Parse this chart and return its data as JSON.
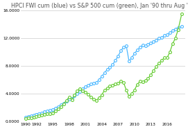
{
  "title": "HPCI FWI cum (blue) vs S&P 500 cum (green), Jan '90 thru Aug '18",
  "title_fontsize": 5.8,
  "background_color": "#ffffff",
  "grid_color": "#cccccc",
  "ylim": [
    0,
    16000
  ],
  "yticks": [
    0,
    4000,
    8000,
    12000,
    16000
  ],
  "ytick_labels": [
    "0.0000",
    "4.0000",
    "8.0000",
    "12.0000",
    "16.0000"
  ],
  "xticks": [
    1990,
    1992,
    1995,
    1998,
    2001,
    2004,
    2007,
    2010,
    2013,
    2016
  ],
  "xtick_labels": [
    "1990",
    "1992",
    "1995",
    "1998",
    "2001",
    "2004",
    "2007",
    "2010",
    "2013",
    "2016"
  ],
  "blue_color": "#4db8ff",
  "green_color": "#66cc33",
  "blue_x": [
    1990.0,
    1990.5,
    1991.0,
    1991.5,
    1992.0,
    1992.5,
    1993.0,
    1993.5,
    1994.0,
    1994.5,
    1995.0,
    1995.5,
    1996.0,
    1996.5,
    1997.0,
    1997.5,
    1998.0,
    1998.5,
    1999.0,
    1999.5,
    2000.0,
    2000.5,
    2001.0,
    2001.5,
    2002.0,
    2002.5,
    2003.0,
    2003.5,
    2004.0,
    2004.5,
    2005.0,
    2005.5,
    2006.0,
    2006.5,
    2007.0,
    2007.5,
    2008.0,
    2008.5,
    2009.0,
    2009.5,
    2010.0,
    2010.5,
    2011.0,
    2011.5,
    2012.0,
    2012.5,
    2013.0,
    2013.5,
    2014.0,
    2014.5,
    2015.0,
    2015.5,
    2016.0,
    2016.5,
    2017.0,
    2017.5,
    2018.0,
    2018.67
  ],
  "blue_y": [
    600,
    700,
    800,
    900,
    1000,
    1100,
    1200,
    1350,
    1450,
    1550,
    1700,
    1900,
    2100,
    2350,
    2600,
    2900,
    3200,
    3300,
    3700,
    4000,
    4300,
    4700,
    5000,
    5200,
    5400,
    5500,
    5600,
    6000,
    6500,
    7000,
    7500,
    7800,
    8200,
    8800,
    9400,
    10200,
    10700,
    10900,
    8700,
    9200,
    9800,
    10300,
    10700,
    11000,
    10900,
    11100,
    11300,
    11500,
    11700,
    12000,
    12100,
    12400,
    12500,
    12800,
    13100,
    13300,
    13500,
    13700
  ],
  "green_x": [
    1990.0,
    1990.5,
    1991.0,
    1991.5,
    1992.0,
    1992.5,
    1993.0,
    1993.5,
    1994.0,
    1994.5,
    1995.0,
    1995.5,
    1996.0,
    1996.5,
    1997.0,
    1997.5,
    1998.0,
    1998.5,
    1999.0,
    1999.5,
    2000.0,
    2000.5,
    2001.0,
    2001.5,
    2002.0,
    2002.5,
    2003.0,
    2003.5,
    2004.0,
    2004.5,
    2005.0,
    2005.5,
    2006.0,
    2006.5,
    2007.0,
    2007.5,
    2008.0,
    2008.5,
    2009.0,
    2009.5,
    2010.0,
    2010.5,
    2011.0,
    2011.5,
    2012.0,
    2012.5,
    2013.0,
    2013.5,
    2014.0,
    2014.5,
    2015.0,
    2015.5,
    2016.0,
    2016.5,
    2017.0,
    2017.5,
    2018.0,
    2018.67
  ],
  "green_y": [
    400,
    450,
    500,
    600,
    700,
    800,
    900,
    1000,
    1050,
    1050,
    1150,
    1450,
    1750,
    2100,
    2500,
    3000,
    3500,
    3100,
    3800,
    4400,
    4700,
    4400,
    4200,
    3900,
    3500,
    3200,
    3000,
    3400,
    3800,
    4500,
    4800,
    5100,
    5200,
    5400,
    5500,
    5800,
    5600,
    4500,
    3600,
    4000,
    4500,
    5300,
    5800,
    5700,
    5900,
    6200,
    6700,
    7300,
    7900,
    8400,
    8800,
    9200,
    9200,
    10000,
    11200,
    12000,
    13200,
    15500
  ]
}
